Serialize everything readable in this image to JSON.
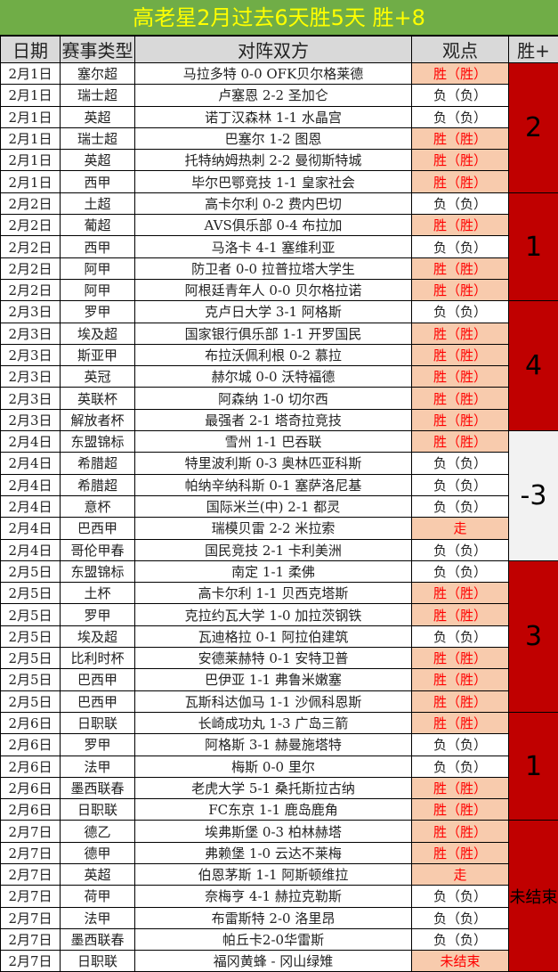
{
  "title": "高老星2月过去6天胜5天  胜+8",
  "headers": [
    "日期",
    "赛事类型",
    "对阵双方",
    "观点",
    "胜+"
  ],
  "colors": {
    "title_bg": "#70ad47",
    "title_text": "#ffff00",
    "win_bg": "#f8cbad",
    "win_text": "#ff0000",
    "group_bg": "#c00000",
    "group_neg_bg": "#f2f2f2"
  },
  "groups": [
    {
      "score": "2",
      "rows": [
        [
          "2月1日",
          "塞尔超",
          "马拉多特 0-0 OFK贝尔格莱德",
          "胜（胜）"
        ],
        [
          "2月1日",
          "瑞士超",
          "卢塞恩 2-2 圣加仑",
          "负（负）"
        ],
        [
          "2月1日",
          "英超",
          "诺丁汉森林 1-1 水晶宫",
          "负（负）"
        ],
        [
          "2月1日",
          "瑞士超",
          "巴塞尔 1-2 图恩",
          "胜（胜）"
        ],
        [
          "2月1日",
          "英超",
          "托特纳姆热刺 2-2 曼彻斯特城",
          "胜（胜）"
        ],
        [
          "2月1日",
          "西甲",
          "毕尔巴鄂竞技 1-1 皇家社会",
          "胜（胜）"
        ]
      ]
    },
    {
      "score": "1",
      "rows": [
        [
          "2月2日",
          "土超",
          "高卡尔利 0-2 费内巴切",
          "负（负）"
        ],
        [
          "2月2日",
          "葡超",
          "AVS俱乐部 0-4 布拉加",
          "胜（胜）"
        ],
        [
          "2月2日",
          "西甲",
          "马洛卡 4-1 塞维利亚",
          "负（负）"
        ],
        [
          "2月2日",
          "阿甲",
          "防卫者 0-0 拉普拉塔大学生",
          "胜（胜）"
        ],
        [
          "2月2日",
          "阿甲",
          "阿根廷青年人 0-0 贝尔格拉诺",
          "胜（胜）"
        ]
      ]
    },
    {
      "score": "4",
      "rows": [
        [
          "2月3日",
          "罗甲",
          "克卢日大学 3-1 阿格斯",
          "负（负）"
        ],
        [
          "2月3日",
          "埃及超",
          "国家银行俱乐部 1-1 开罗国民",
          "胜（胜）"
        ],
        [
          "2月3日",
          "斯亚甲",
          "布拉沃佩利根 0-2 慕拉",
          "胜（胜）"
        ],
        [
          "2月3日",
          "英冠",
          "赫尔城 0-0 沃特福德",
          "胜（胜）"
        ],
        [
          "2月3日",
          "英联杯",
          "阿森纳 1-0 切尔西",
          "胜（胜）"
        ],
        [
          "2月3日",
          "解放者杯",
          "最强者 2-1 塔奇拉竞技",
          "胜（胜）"
        ]
      ]
    },
    {
      "score": "-3",
      "rows": [
        [
          "2月4日",
          "东盟锦标",
          "雪州 1-1 巴吞联",
          "胜（胜）"
        ],
        [
          "2月4日",
          "希腊超",
          "特里波利斯 0-3 奥林匹亚科斯",
          "负（负）"
        ],
        [
          "2月4日",
          "希腊超",
          "帕纳辛纳科斯 0-1 塞萨洛尼基",
          "负（负）"
        ],
        [
          "2月4日",
          "意杯",
          "国际米兰(中) 2-1 都灵",
          "负（负）"
        ],
        [
          "2月4日",
          "巴西甲",
          "瑞模贝雷 2-2 米拉索",
          "走"
        ],
        [
          "2月4日",
          "哥伦甲春",
          "国民竞技 2-1 卡利美洲",
          "负（负）"
        ]
      ]
    },
    {
      "score": "3",
      "rows": [
        [
          "2月5日",
          "东盟锦标",
          "南定 1-1 柔佛",
          "负（负）"
        ],
        [
          "2月5日",
          "土杯",
          "高卡尔利 1-1 贝西克塔斯",
          "胜（胜）"
        ],
        [
          "2月5日",
          "罗甲",
          "克拉约瓦大学 1-0 加拉茨钢铁",
          "胜（胜）"
        ],
        [
          "2月5日",
          "埃及超",
          "瓦迪格拉 0-1 阿拉伯建筑",
          "负（负）"
        ],
        [
          "2月5日",
          "比利时杯",
          "安德莱赫特 0-1 安特卫普",
          "胜（胜）"
        ],
        [
          "2月5日",
          "巴西甲",
          "巴伊亚 1-1 弗鲁米嫩塞",
          "胜（胜）"
        ],
        [
          "2月5日",
          "巴西甲",
          "瓦斯科达伽马 1-1 沙佩科恩斯",
          "胜（胜）"
        ]
      ]
    },
    {
      "score": "1",
      "rows": [
        [
          "2月6日",
          "日职联",
          "长崎成功丸 1-3 广岛三箭",
          "胜（胜）"
        ],
        [
          "2月6日",
          "罗甲",
          "阿格斯 3-1 赫曼施塔特",
          "负（负）"
        ],
        [
          "2月6日",
          "法甲",
          "梅斯 0-0 里尔",
          "负（负）"
        ],
        [
          "2月6日",
          "墨西联春",
          "老虎大学 5-1 桑托斯拉古纳",
          "胜（胜）"
        ],
        [
          "2月6日",
          "日职联",
          "FC东京 1-1 鹿岛鹿角",
          "胜（胜）"
        ]
      ]
    },
    {
      "score": "未结束",
      "rows": [
        [
          "2月7日",
          "德乙",
          "埃弗斯堡 0-3 柏林赫塔",
          "胜（胜）"
        ],
        [
          "2月7日",
          "德甲",
          "弗赖堡 1-0 云达不莱梅",
          "胜（胜）"
        ],
        [
          "2月7日",
          "英超",
          "伯恩茅斯 1-1 阿斯顿维拉",
          "走"
        ],
        [
          "2月7日",
          "荷甲",
          "奈梅亨 4-1 赫拉克勒斯",
          "负（负）"
        ],
        [
          "2月7日",
          "法甲",
          "布雷斯特 2-0 洛里昂",
          "负（负）"
        ],
        [
          "2月7日",
          "墨西联春",
          "帕丘卡2-0华雷斯",
          "负（负）"
        ],
        [
          "2月7日",
          "日职联",
          "福冈黄蜂 - 冈山绿雉",
          "未结束"
        ]
      ]
    }
  ]
}
